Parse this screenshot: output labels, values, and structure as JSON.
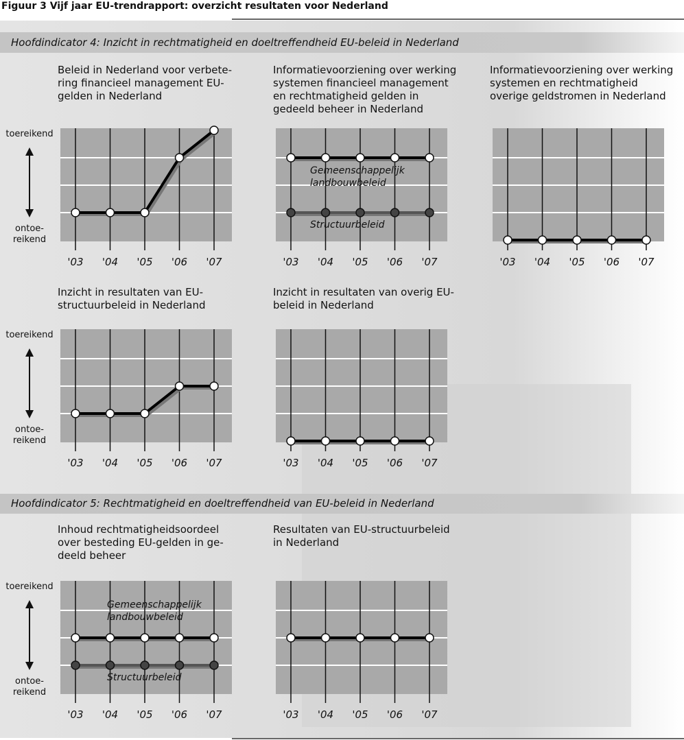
{
  "title": "Figuur 3  Vijf jaar EU-trendrapport: overzicht resultaten voor Nederland",
  "sections": [
    "Hoofdindicator 4: Inzicht in rechtmatigheid en doeltreffendheid EU-beleid in Nederland",
    "Hoofdindicator 5: Rechtmatigheid en doeltreffendheid van EU-beleid in Nederland"
  ],
  "chart_data": [
    {
      "type": "line",
      "title": [
        "Beleid in Nederland voor verbete-",
        "ring financieel management EU-",
        "gelden in Nederland"
      ],
      "y_top_label": "toereikend",
      "y_bottom_label": [
        "ontoe-",
        "reikend"
      ],
      "categories": [
        "'03",
        "'04",
        "'05",
        "'06",
        "'07"
      ],
      "ylim": [
        0,
        4
      ],
      "yticks": [
        1,
        2,
        3
      ],
      "series": [
        {
          "color": "#ffffff",
          "values": [
            1,
            1,
            1,
            3,
            4
          ]
        }
      ]
    },
    {
      "type": "line",
      "title": [
        "Informatievoorziening over werking",
        "systemen financieel management",
        "en rechtmatigheid gelden in",
        "gedeeld beheer in Nederland"
      ],
      "categories": [
        "'03",
        "'04",
        "'05",
        "'06",
        "'07"
      ],
      "ylim": [
        0,
        4
      ],
      "yticks": [
        1,
        2,
        3
      ],
      "series": [
        {
          "name": [
            "Gemeenschappelijk",
            "landbouwbeleid"
          ],
          "color": "#ffffff",
          "values": [
            3,
            3,
            3,
            3,
            3
          ]
        },
        {
          "name": [
            "Structuurbeleid"
          ],
          "color": "#444444",
          "values": [
            1,
            1,
            1,
            1,
            1
          ]
        }
      ]
    },
    {
      "type": "line",
      "title": [
        "Informatievoorziening over werking",
        "systemen en rechtmatigheid",
        "overige geldstromen in Nederland"
      ],
      "categories": [
        "'03",
        "'04",
        "'05",
        "'06",
        "'07"
      ],
      "ylim": [
        0,
        4
      ],
      "yticks": [
        1,
        2,
        3
      ],
      "series": [
        {
          "color": "#ffffff",
          "values": [
            0,
            0,
            0,
            0,
            0
          ]
        }
      ]
    },
    {
      "type": "line",
      "title": [
        "Inzicht in resultaten van EU-",
        "structuurbeleid in Nederland"
      ],
      "y_top_label": "toereikend",
      "y_bottom_label": [
        "ontoe-",
        "reikend"
      ],
      "categories": [
        "'03",
        "'04",
        "'05",
        "'06",
        "'07"
      ],
      "ylim": [
        0,
        4
      ],
      "yticks": [
        1,
        2,
        3
      ],
      "series": [
        {
          "color": "#ffffff",
          "values": [
            1,
            1,
            1,
            2,
            2
          ]
        }
      ]
    },
    {
      "type": "line",
      "title": [
        "Inzicht in resultaten van overig EU-",
        "beleid in Nederland"
      ],
      "categories": [
        "'03",
        "'04",
        "'05",
        "'06",
        "'07"
      ],
      "ylim": [
        0,
        4
      ],
      "yticks": [
        1,
        2,
        3
      ],
      "series": [
        {
          "color": "#ffffff",
          "values": [
            0,
            0,
            0,
            0,
            0
          ]
        }
      ]
    },
    {
      "type": "line",
      "title": [
        "Inhoud  rechtmatigheidsoordeel",
        "over besteding EU-gelden in ge-",
        "deeld beheer"
      ],
      "y_top_label": "toereikend",
      "y_bottom_label": [
        "ontoe-",
        "reikend"
      ],
      "categories": [
        "'03",
        "'04",
        "'05",
        "'06",
        "'07"
      ],
      "ylim": [
        0,
        4
      ],
      "yticks": [
        1,
        2,
        3
      ],
      "series": [
        {
          "name": [
            "Gemeenschappelijk",
            "landbouwbeleid"
          ],
          "color": "#ffffff",
          "values": [
            2,
            2,
            2,
            2,
            2
          ]
        },
        {
          "name": [
            "Structuurbeleid"
          ],
          "color": "#444444",
          "values": [
            1,
            1,
            1,
            1,
            1
          ]
        }
      ]
    },
    {
      "type": "line",
      "title": [
        "Resultaten van EU-structuurbeleid",
        "in Nederland"
      ],
      "categories": [
        "'03",
        "'04",
        "'05",
        "'06",
        "'07"
      ],
      "ylim": [
        0,
        4
      ],
      "yticks": [
        1,
        2,
        3
      ],
      "series": [
        {
          "color": "#ffffff",
          "values": [
            2,
            2,
            2,
            2,
            2
          ]
        }
      ]
    }
  ]
}
